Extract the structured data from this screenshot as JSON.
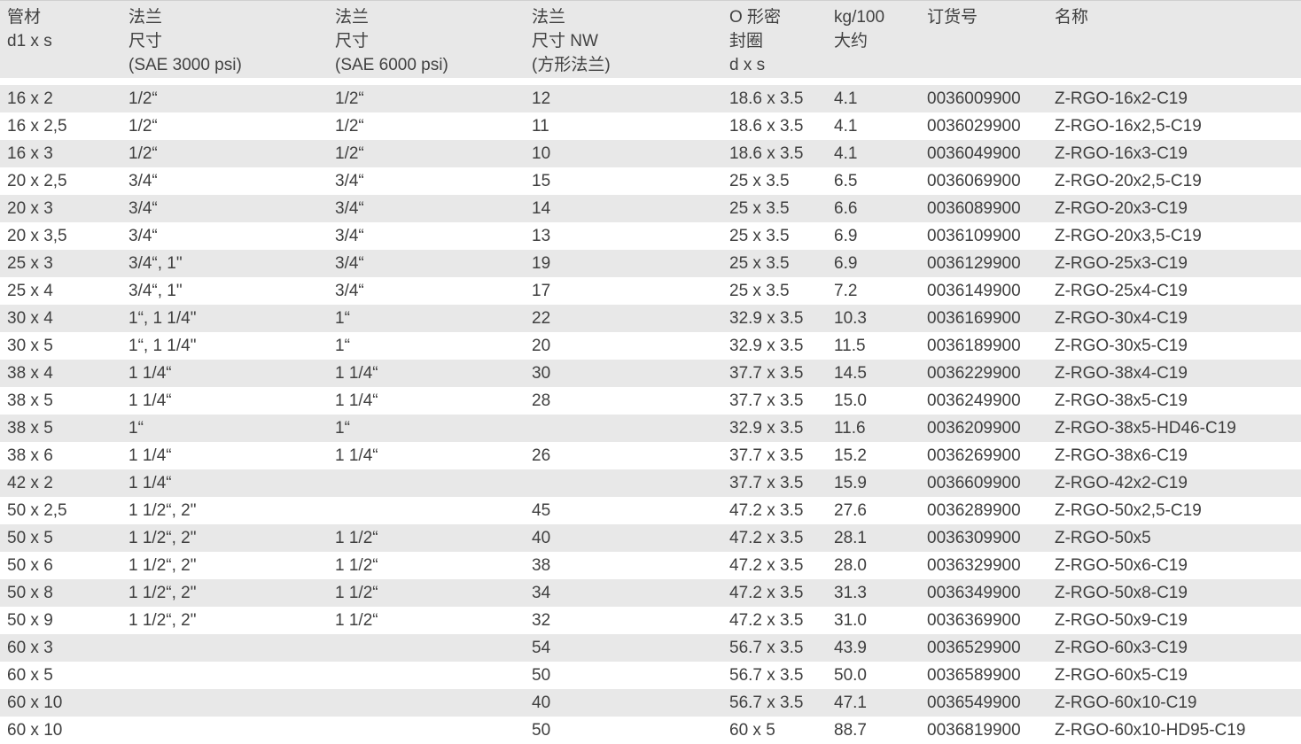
{
  "table": {
    "stripe_color": "#e8e8e8",
    "text_color": "#3f3f3f",
    "columns": [
      {
        "id": "pipe",
        "lines": [
          "管材",
          "d1 x s",
          ""
        ]
      },
      {
        "id": "flange-sae3000",
        "lines": [
          "法兰",
          "尺寸",
          "(SAE 3000 psi)"
        ]
      },
      {
        "id": "flange-sae6000",
        "lines": [
          "法兰",
          "尺寸",
          "(SAE 6000 psi)"
        ]
      },
      {
        "id": "flange-nw",
        "lines": [
          "法兰",
          "尺寸 NW",
          "(方形法兰)"
        ]
      },
      {
        "id": "oring",
        "lines": [
          "O 形密",
          "封圈",
          "d x s"
        ]
      },
      {
        "id": "weight",
        "lines": [
          "kg/100",
          "大约",
          ""
        ]
      },
      {
        "id": "order-no",
        "lines": [
          "订货号",
          "",
          ""
        ]
      },
      {
        "id": "name",
        "lines": [
          "名称",
          "",
          ""
        ]
      }
    ],
    "rows": [
      [
        "16 x 2",
        "1/2“",
        "1/2“",
        "12",
        "18.6 x 3.5",
        "4.1",
        "0036009900",
        "Z-RGO-16x2-C19"
      ],
      [
        "16 x 2,5",
        "1/2“",
        "1/2“",
        "11",
        "18.6 x 3.5",
        "4.1",
        "0036029900",
        "Z-RGO-16x2,5-C19"
      ],
      [
        "16 x 3",
        "1/2“",
        "1/2“",
        "10",
        "18.6 x 3.5",
        "4.1",
        "0036049900",
        "Z-RGO-16x3-C19"
      ],
      [
        "20 x 2,5",
        "3/4“",
        "3/4“",
        "15",
        "25 x 3.5",
        "6.5",
        "0036069900",
        "Z-RGO-20x2,5-C19"
      ],
      [
        "20 x 3",
        "3/4“",
        "3/4“",
        "14",
        "25 x 3.5",
        "6.6",
        "0036089900",
        "Z-RGO-20x3-C19"
      ],
      [
        "20 x 3,5",
        "3/4“",
        "3/4“",
        "13",
        "25 x 3.5",
        "6.9",
        "0036109900",
        "Z-RGO-20x3,5-C19"
      ],
      [
        "25 x 3",
        "3/4“, 1\"",
        "3/4“",
        "19",
        "25 x 3.5",
        "6.9",
        "0036129900",
        "Z-RGO-25x3-C19"
      ],
      [
        "25 x 4",
        "3/4“, 1\"",
        "3/4“",
        "17",
        "25 x 3.5",
        "7.2",
        "0036149900",
        "Z-RGO-25x4-C19"
      ],
      [
        "30 x 4",
        "1“, 1 1/4\"",
        "1“",
        "22",
        "32.9 x 3.5",
        "10.3",
        "0036169900",
        "Z-RGO-30x4-C19"
      ],
      [
        "30 x 5",
        "1“, 1 1/4\"",
        "1“",
        "20",
        "32.9 x 3.5",
        "11.5",
        "0036189900",
        "Z-RGO-30x5-C19"
      ],
      [
        "38 x 4",
        "1 1/4“",
        "1 1/4“",
        "30",
        "37.7 x 3.5",
        "14.5",
        "0036229900",
        "Z-RGO-38x4-C19"
      ],
      [
        "38 x 5",
        "1 1/4“",
        "1 1/4“",
        "28",
        "37.7 x 3.5",
        "15.0",
        "0036249900",
        "Z-RGO-38x5-C19"
      ],
      [
        "38 x 5",
        "1“",
        "1“",
        "",
        "32.9 x 3.5",
        "11.6",
        "0036209900",
        "Z-RGO-38x5-HD46-C19"
      ],
      [
        "38 x 6",
        "1 1/4“",
        "1 1/4“",
        "26",
        "37.7 x 3.5",
        "15.2",
        "0036269900",
        "Z-RGO-38x6-C19"
      ],
      [
        "42 x 2",
        "1 1/4“",
        "",
        "",
        "37.7 x 3.5",
        "15.9",
        "0036609900",
        "Z-RGO-42x2-C19"
      ],
      [
        "50 x 2,5",
        "1 1/2“, 2\"",
        "",
        "45",
        "47.2 x 3.5",
        "27.6",
        "0036289900",
        "Z-RGO-50x2,5-C19"
      ],
      [
        "50 x 5",
        "1 1/2“, 2\"",
        "1 1/2“",
        "40",
        "47.2 x 3.5",
        "28.1",
        "0036309900",
        "Z-RGO-50x5"
      ],
      [
        "50 x 6",
        "1 1/2“, 2\"",
        "1 1/2“",
        "38",
        "47.2 x 3.5",
        "28.0",
        "0036329900",
        "Z-RGO-50x6-C19"
      ],
      [
        "50 x 8",
        "1 1/2“, 2\"",
        "1 1/2“",
        "34",
        "47.2 x 3.5",
        "31.3",
        "0036349900",
        "Z-RGO-50x8-C19"
      ],
      [
        "50 x 9",
        "1 1/2“, 2\"",
        "1 1/2“",
        "32",
        "47.2 x 3.5",
        "31.0",
        "0036369900",
        "Z-RGO-50x9-C19"
      ],
      [
        "60 x 3",
        "",
        "",
        "54",
        "56.7 x 3.5",
        "43.9",
        "0036529900",
        "Z-RGO-60x3-C19"
      ],
      [
        "60 x 5",
        "",
        "",
        "50",
        "56.7 x 3.5",
        "50.0",
        "0036589900",
        "Z-RGO-60x5-C19"
      ],
      [
        "60 x 10",
        "",
        "",
        "40",
        "56.7 x 3.5",
        "47.1",
        "0036549900",
        "Z-RGO-60x10-C19"
      ],
      [
        "60 x 10",
        "",
        "",
        "50",
        "60 x 5",
        "88.7",
        "0036819900",
        "Z-RGO-60x10-HD95-C19"
      ]
    ]
  }
}
